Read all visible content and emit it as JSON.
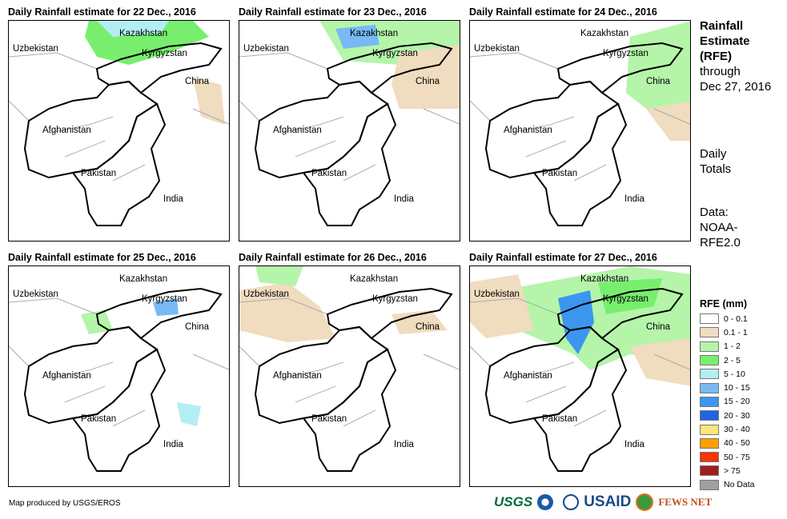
{
  "panels": [
    {
      "title": "Daily Rainfall estimate for 22 Dec., 2016"
    },
    {
      "title": "Daily Rainfall estimate for 23 Dec., 2016"
    },
    {
      "title": "Daily Rainfall estimate for 24 Dec., 2016"
    },
    {
      "title": "Daily Rainfall estimate for 25 Dec., 2016"
    },
    {
      "title": "Daily Rainfall estimate for 26 Dec., 2016"
    },
    {
      "title": "Daily Rainfall estimate for 27 Dec., 2016"
    }
  ],
  "map_labels": {
    "kazakhstan": "Kazakhstan",
    "uzbekistan": "Uzbekistan",
    "kyrgyzstan": "Kyrgyzstan",
    "china": "China",
    "afghanistan": "Afghanistan",
    "pakistan": "Pakistan",
    "india": "India"
  },
  "side": {
    "title1": "Rainfall",
    "title2": "Estimate",
    "title3": "(RFE)",
    "through": "through",
    "date": "Dec 27, 2016",
    "daily1": "Daily",
    "daily2": "Totals",
    "data1": "Data:",
    "data2": "NOAA-",
    "data3": "RFE2.0"
  },
  "legend": {
    "title": "RFE (mm)",
    "items": [
      {
        "label": "0 - 0.1",
        "color": "#ffffff"
      },
      {
        "label": "0.1 - 1",
        "color": "#f0dcbe"
      },
      {
        "label": "1 - 2",
        "color": "#b4f5aa"
      },
      {
        "label": "2 - 5",
        "color": "#78ee6e"
      },
      {
        "label": "5 - 10",
        "color": "#b4eef5"
      },
      {
        "label": "10 - 15",
        "color": "#78b9f5"
      },
      {
        "label": "15 - 20",
        "color": "#3c96f0"
      },
      {
        "label": "20 - 30",
        "color": "#1e64e6"
      },
      {
        "label": "30 - 40",
        "color": "#ffe678"
      },
      {
        "label": "40 - 50",
        "color": "#ffa000"
      },
      {
        "label": "50 - 75",
        "color": "#ff3200"
      },
      {
        "label": "> 75",
        "color": "#a01e1e"
      },
      {
        "label": "No Data",
        "color": "#a0a0a0"
      }
    ]
  },
  "credit": "Map produced by USGS/EROS",
  "logos": {
    "usgs": "USGS",
    "usaid": "USAID",
    "fews": "FEWS NET"
  }
}
